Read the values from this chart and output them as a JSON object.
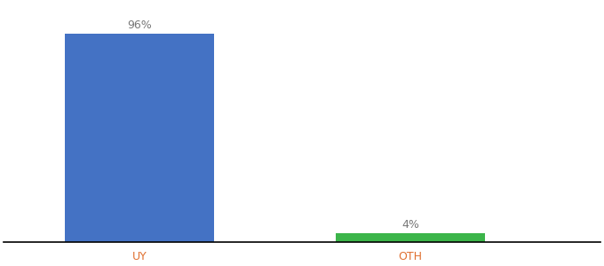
{
  "categories": [
    "UY",
    "OTH"
  ],
  "values": [
    96,
    4
  ],
  "bar_colors": [
    "#4472c4",
    "#3cb54a"
  ],
  "labels": [
    "96%",
    "4%"
  ],
  "ylim": [
    0,
    110
  ],
  "background_color": "#ffffff",
  "label_fontsize": 9,
  "tick_fontsize": 9,
  "bar_width": 0.55,
  "x_positions": [
    0.5,
    1.5
  ],
  "xlim": [
    0.0,
    2.2
  ],
  "tick_color": "#e07030"
}
